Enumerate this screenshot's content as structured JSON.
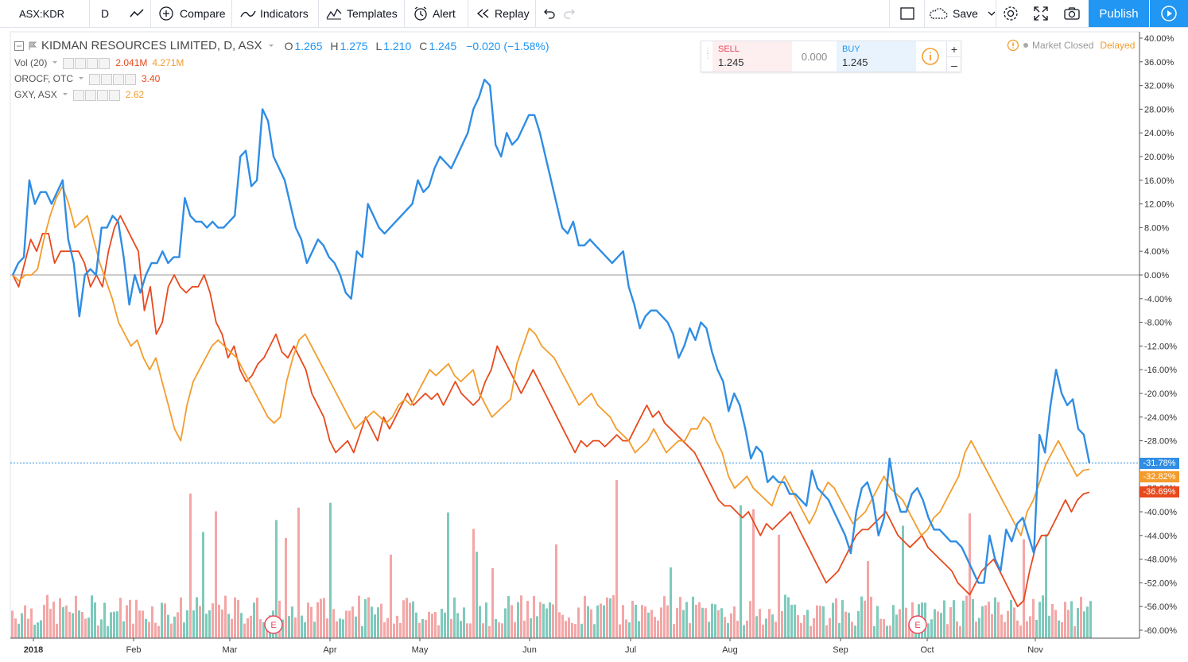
{
  "toolbar": {
    "symbol": "ASX:KDR",
    "interval": "D",
    "compare": "Compare",
    "indicators": "Indicators",
    "templates": "Templates",
    "alert": "Alert",
    "replay": "Replay",
    "save": "Save",
    "publish": "Publish"
  },
  "legend": {
    "main": {
      "title": "KIDMAN RESOURCES LIMITED, D, ASX",
      "o_label": "O",
      "o": "1.265",
      "h_label": "H",
      "h": "1.275",
      "l_label": "L",
      "l": "1.210",
      "c_label": "C",
      "c": "1.245",
      "change": "−0.020 (−1.58%)"
    },
    "vol": {
      "name": "Vol (20)",
      "v1": "2.041M",
      "v2": "4.271M"
    },
    "orocf": {
      "name": "OROCF, OTC",
      "value": "3.40"
    },
    "gxy": {
      "name": "GXY, ASX",
      "value": "2.62"
    }
  },
  "trade_panel": {
    "sell_label": "SELL",
    "sell_price": "1.245",
    "spread": "0.000",
    "buy_label": "BUY",
    "buy_price": "1.245"
  },
  "status": {
    "market": "Market Closed",
    "delayed": "Delayed"
  },
  "colors": {
    "kdr": "#2f8de4",
    "orocf": "#e8491d",
    "gxy": "#f39c2c",
    "vol_up": "#7ecabb",
    "vol_down": "#f4a6a6"
  },
  "earnings_marker": "E",
  "chart_data": {
    "type": "line",
    "y_unit": "%",
    "ylim": [
      -61,
      41
    ],
    "y_ticks": [
      "40.00%",
      "36.00%",
      "32.00%",
      "28.00%",
      "24.00%",
      "20.00%",
      "16.00%",
      "12.00%",
      "8.00%",
      "4.00%",
      "0.00%",
      "-4.00%",
      "-8.00%",
      "-12.00%",
      "-16.00%",
      "-20.00%",
      "-24.00%",
      "-28.00%",
      "-32.00%",
      "-36.00%",
      "-40.00%",
      "-44.00%",
      "-48.00%",
      "-52.00%",
      "-56.00%",
      "-60.00%"
    ],
    "x_ticks": [
      "2018",
      "Feb",
      "Mar",
      "Apr",
      "May",
      "Jun",
      "Jul",
      "Aug",
      "Sep",
      "Oct",
      "Nov"
    ],
    "last_values": {
      "kdr": "-31.78%",
      "gxy": "-32.82%",
      "orocf": "-36.69%"
    },
    "series": [
      {
        "name": "KIDMAN RESOURCES LIMITED",
        "key": "kdr",
        "values": [
          0,
          2,
          3,
          16,
          12,
          14,
          14,
          12,
          14,
          16,
          6,
          2,
          -7,
          0,
          1,
          0,
          8,
          8,
          10,
          9,
          3,
          -5,
          0,
          -3,
          0,
          2,
          2,
          4,
          2,
          3,
          3,
          13,
          10,
          9,
          9,
          8,
          9,
          8,
          8,
          9,
          10,
          20,
          21,
          15,
          16,
          28,
          26,
          20,
          18,
          16,
          12,
          8,
          6,
          2,
          4,
          6,
          5,
          3,
          2,
          0,
          -3,
          -4,
          4,
          3,
          12,
          10,
          8,
          7,
          8,
          9,
          10,
          11,
          12,
          16,
          14,
          15,
          18,
          20,
          19,
          18,
          20,
          22,
          24,
          28,
          30,
          33,
          32,
          22,
          20,
          24,
          22,
          23,
          25,
          27,
          27,
          24,
          20,
          16,
          12,
          8,
          7,
          9,
          5,
          5,
          6,
          5,
          4,
          3,
          2,
          3,
          4,
          -2,
          -5,
          -9,
          -7,
          -6,
          -6,
          -7,
          -8,
          -10,
          -14,
          -12,
          -9,
          -11,
          -8,
          -9,
          -13,
          -16,
          -18,
          -23,
          -20,
          -22,
          -26,
          -31,
          -29,
          -30,
          -35,
          -34,
          -35,
          -35,
          -37,
          -37,
          -38,
          -39,
          -33,
          -36,
          -37,
          -38,
          -40,
          -42,
          -44,
          -47,
          -40,
          -36,
          -35,
          -38,
          -44,
          -41,
          -31,
          -37,
          -40,
          -40,
          -37,
          -36,
          -38,
          -41,
          -43,
          -43,
          -44,
          -45,
          -45,
          -46,
          -48,
          -50,
          -52,
          -52,
          -44,
          -48,
          -50,
          -43,
          -45,
          -42,
          -41,
          -44,
          -47,
          -27,
          -30,
          -22,
          -16,
          -20,
          -22,
          -21,
          -26,
          -27,
          -31.78
        ]
      },
      {
        "name": "OROCF, OTC",
        "key": "orocf",
        "values": [
          0,
          -2,
          2,
          6,
          4,
          7,
          7,
          2,
          4,
          4,
          4,
          4,
          2,
          -2,
          0,
          -2,
          4,
          8,
          10,
          8,
          6,
          4,
          -6,
          -2,
          -10,
          -8,
          -2,
          0,
          -2,
          -3,
          -2,
          -2,
          0,
          -3,
          -8,
          -10,
          -14,
          -12,
          -16,
          -18,
          -17,
          -15,
          -14,
          -12,
          -10,
          -13,
          -14,
          -12,
          -14,
          -16,
          -20,
          -22,
          -24,
          -28,
          -30,
          -29,
          -28,
          -30,
          -27,
          -24,
          -26,
          -28,
          -24,
          -26,
          -24,
          -22,
          -20,
          -22,
          -21,
          -20,
          -21,
          -20,
          -22,
          -20,
          -18,
          -20,
          -21,
          -22,
          -21,
          -18,
          -16,
          -12,
          -14,
          -16,
          -18,
          -20,
          -18,
          -16,
          -18,
          -20,
          -22,
          -24,
          -26,
          -28,
          -30,
          -28,
          -29,
          -28,
          -28,
          -29,
          -28,
          -27,
          -28,
          -28,
          -26,
          -24,
          -22,
          -24,
          -23,
          -25,
          -26,
          -27,
          -28,
          -29,
          -30,
          -32,
          -34,
          -36,
          -38,
          -39,
          -39,
          -40,
          -41,
          -40,
          -42,
          -44,
          -42,
          -43,
          -42,
          -41,
          -40,
          -42,
          -44,
          -46,
          -48,
          -50,
          -52,
          -51,
          -50,
          -48,
          -46,
          -44,
          -43,
          -43,
          -42,
          -41,
          -40,
          -42,
          -44,
          -45,
          -46,
          -45,
          -44,
          -46,
          -47,
          -48,
          -49,
          -50,
          -52,
          -53,
          -54,
          -52,
          -50,
          -49,
          -48,
          -50,
          -52,
          -54,
          -56,
          -55,
          -50,
          -46,
          -44,
          -44,
          -42,
          -40,
          -38,
          -40,
          -38,
          -37,
          -36.69
        ]
      },
      {
        "name": "GXY, ASX",
        "key": "gxy",
        "values": [
          0,
          -1,
          0,
          0,
          1,
          6,
          10,
          13,
          15,
          12,
          8,
          9,
          10,
          6,
          2,
          -1,
          -4,
          -8,
          -10,
          -12,
          -11,
          -14,
          -16,
          -14,
          -18,
          -22,
          -26,
          -28,
          -22,
          -18,
          -16,
          -14,
          -12,
          -11,
          -12,
          -13,
          -14,
          -16,
          -18,
          -20,
          -22,
          -24,
          -25,
          -24,
          -18,
          -14,
          -11,
          -10,
          -12,
          -14,
          -16,
          -18,
          -20,
          -22,
          -24,
          -26,
          -25,
          -24,
          -23,
          -24,
          -25,
          -24,
          -22,
          -21,
          -22,
          -20,
          -18,
          -16,
          -17,
          -16,
          -15,
          -17,
          -18,
          -17,
          -16,
          -20,
          -22,
          -24,
          -23,
          -22,
          -21,
          -15,
          -12,
          -9,
          -10,
          -12,
          -13,
          -14,
          -16,
          -18,
          -20,
          -22,
          -21,
          -20,
          -22,
          -23,
          -24,
          -26,
          -27,
          -28,
          -30,
          -29,
          -28,
          -26,
          -28,
          -30,
          -29,
          -28,
          -28,
          -26,
          -26,
          -24,
          -25,
          -28,
          -30,
          -34,
          -36,
          -35,
          -34,
          -36,
          -37,
          -38,
          -39,
          -36,
          -34,
          -36,
          -38,
          -40,
          -42,
          -40,
          -37,
          -35,
          -36,
          -38,
          -40,
          -42,
          -41,
          -40,
          -38,
          -36,
          -34,
          -36,
          -37,
          -38,
          -40,
          -42,
          -44,
          -43,
          -41,
          -40,
          -38,
          -36,
          -34,
          -30,
          -28,
          -30,
          -32,
          -34,
          -36,
          -38,
          -40,
          -42,
          -44,
          -40,
          -38,
          -35,
          -32,
          -30,
          -28,
          -30,
          -32,
          -34,
          -33,
          -32.82
        ]
      }
    ]
  }
}
